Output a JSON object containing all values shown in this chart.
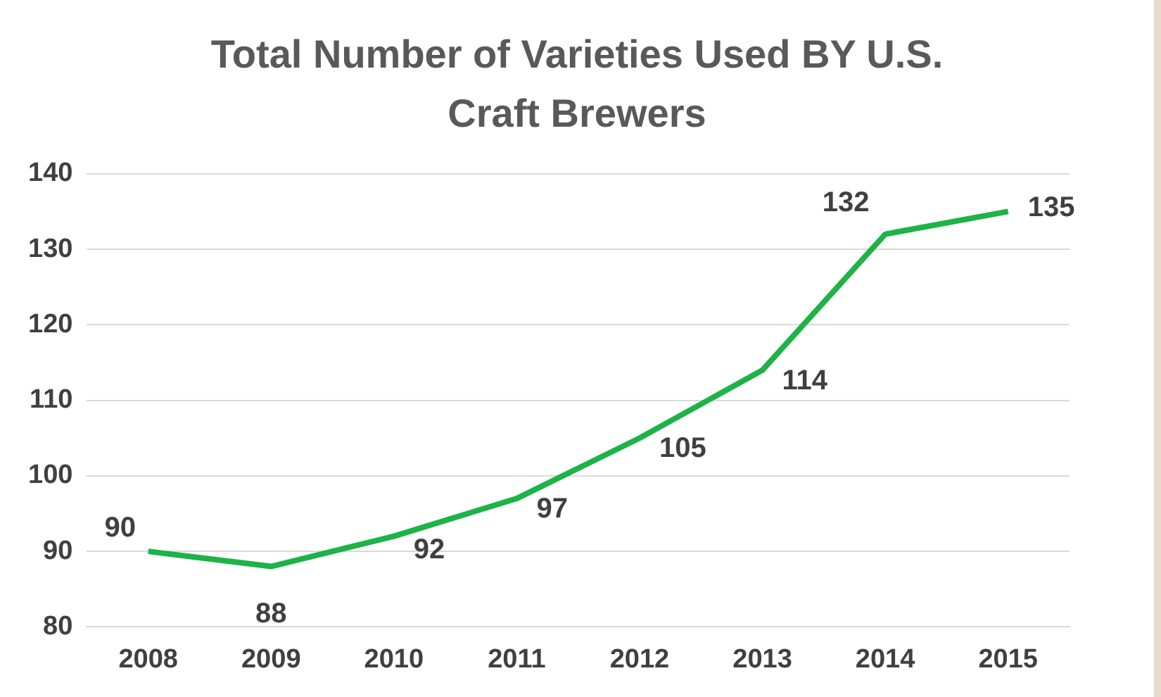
{
  "chart_data": {
    "type": "line",
    "title": "Total Number of Varieties Used BY U.S. Craft Brewers",
    "categories": [
      "2008",
      "2009",
      "2010",
      "2011",
      "2012",
      "2013",
      "2014",
      "2015"
    ],
    "series": [
      {
        "color": "#1db347",
        "values": [
          90,
          88,
          92,
          97,
          105,
          114,
          132,
          135
        ]
      }
    ],
    "ylim": [
      80,
      140
    ],
    "yticks": [
      80,
      90,
      100,
      110,
      120,
      130,
      140
    ],
    "grid": "y",
    "legend": false,
    "marker": "none",
    "line_style": "solid",
    "data_labels": true
  }
}
